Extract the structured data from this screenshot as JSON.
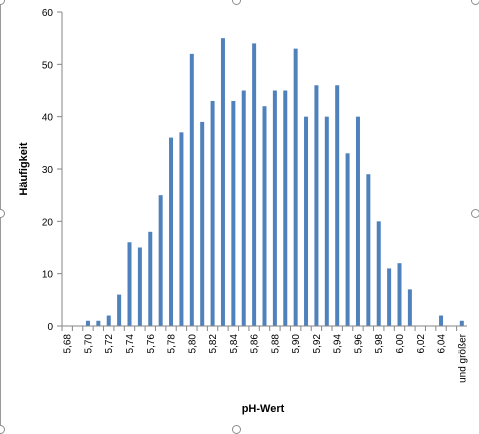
{
  "chart_data": {
    "type": "bar",
    "xlabel": "pH-Wert",
    "ylabel": "Häufigkeit",
    "ylim": [
      0,
      60
    ],
    "yticks": [
      0,
      10,
      20,
      30,
      40,
      50,
      60
    ],
    "grid": false,
    "legend": "none",
    "bar_color": "#4F81BD",
    "tick_labels": [
      "5,68",
      "5,70",
      "5,72",
      "5,74",
      "5,76",
      "5,78",
      "5,80",
      "5,82",
      "5,84",
      "5,86",
      "5,88",
      "5,90",
      "5,92",
      "5,94",
      "5,96",
      "5,98",
      "6,00",
      "6,02",
      "6,04",
      "und größer"
    ],
    "categories": [
      "5,68",
      "5,69",
      "5,70",
      "5,71",
      "5,72",
      "5,73",
      "5,74",
      "5,75",
      "5,76",
      "5,77",
      "5,78",
      "5,79",
      "5,80",
      "5,81",
      "5,82",
      "5,83",
      "5,84",
      "5,85",
      "5,86",
      "5,87",
      "5,88",
      "5,89",
      "5,90",
      "5,91",
      "5,92",
      "5,93",
      "5,94",
      "5,95",
      "5,96",
      "5,97",
      "5,98",
      "5,99",
      "6,00",
      "6,01",
      "6,02",
      "6,03",
      "6,04",
      "6,05",
      "und größer"
    ],
    "values": [
      0,
      0,
      1,
      1,
      2,
      6,
      16,
      15,
      18,
      25,
      36,
      37,
      52,
      39,
      43,
      55,
      43,
      45,
      54,
      42,
      45,
      45,
      53,
      40,
      46,
      40,
      46,
      33,
      40,
      29,
      20,
      11,
      12,
      7,
      0,
      0,
      2,
      0,
      1
    ]
  }
}
